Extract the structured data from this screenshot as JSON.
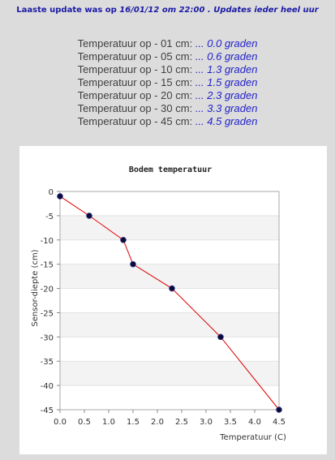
{
  "header": {
    "prefix": "Laaste update was op",
    "datetime": "16/01/12 om 22:00",
    "suffix": ". Updates ieder heel uur"
  },
  "readings": [
    {
      "label": "Temperatuur op - 01 cm:",
      "value": "... 0.0 graden"
    },
    {
      "label": "Temperatuur op - 05 cm:",
      "value": "... 0.6 graden"
    },
    {
      "label": "Temperatuur op - 10 cm:",
      "value": "... 1.3 graden"
    },
    {
      "label": "Temperatuur op - 15 cm:",
      "value": "... 1.5 graden"
    },
    {
      "label": "Temperatuur op - 20 cm:",
      "value": "... 2.3 graden"
    },
    {
      "label": "Temperatuur op - 30 cm:",
      "value": "... 3.3 graden"
    },
    {
      "label": "Temperatuur op - 45 cm:",
      "value": "... 4.5 graden"
    }
  ],
  "chart_data": {
    "type": "line",
    "title": "Bodem temperatuur",
    "xlabel": "Temperatuur (C)",
    "ylabel": "Sensor-diepte (cm)",
    "xlim": [
      0,
      4.5
    ],
    "ylim": [
      -45,
      0
    ],
    "xticks": [
      "0.0",
      "0.5",
      "1.0",
      "1.5",
      "2.0",
      "2.5",
      "3.0",
      "3.5",
      "4.0",
      "4.5"
    ],
    "yticks": [
      "0",
      "-5",
      "-10",
      "-15",
      "-20",
      "-25",
      "-30",
      "-35",
      "-40",
      "-45"
    ],
    "grid": true,
    "legend": "none",
    "series": [
      {
        "x": [
          0.0,
          0.6,
          1.3,
          1.5,
          2.3,
          3.3,
          4.5
        ],
        "y": [
          -1,
          -5,
          -10,
          -15,
          -20,
          -30,
          -45
        ],
        "color": "#dd0000",
        "marker_color": "#0a0a3a"
      }
    ]
  }
}
